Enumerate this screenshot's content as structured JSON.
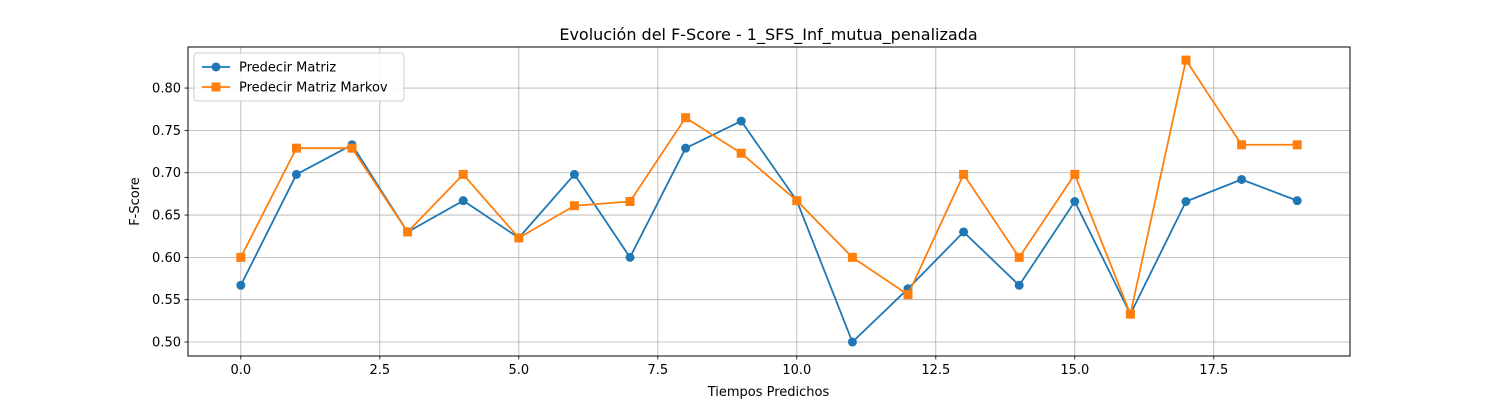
{
  "chart_data": {
    "type": "line",
    "title": "Evolución del F-Score - 1_SFS_Inf_mutua_penalizada",
    "xlabel": "Tiempos Predichos",
    "ylabel": "F-Score",
    "xlim": [
      -0.95,
      19.95
    ],
    "ylim": [
      0.4835,
      0.8485
    ],
    "xticks": [
      0.0,
      2.5,
      5.0,
      7.5,
      10.0,
      12.5,
      15.0,
      17.5
    ],
    "xtick_labels": [
      "0.0",
      "2.5",
      "5.0",
      "7.5",
      "10.0",
      "12.5",
      "15.0",
      "17.5"
    ],
    "yticks": [
      0.5,
      0.55,
      0.6,
      0.65,
      0.7,
      0.75,
      0.8
    ],
    "ytick_labels": [
      "0.50",
      "0.55",
      "0.60",
      "0.65",
      "0.70",
      "0.75",
      "0.80"
    ],
    "grid": true,
    "legend_position": "top-left",
    "x": [
      0,
      1,
      2,
      3,
      4,
      5,
      6,
      7,
      8,
      9,
      10,
      11,
      12,
      13,
      14,
      15,
      16,
      17,
      18,
      19
    ],
    "series": [
      {
        "name": "Predecir Matriz",
        "color": "#1f77b4",
        "marker": "circle",
        "values": [
          0.567,
          0.698,
          0.733,
          0.63,
          0.667,
          0.623,
          0.698,
          0.6,
          0.729,
          0.761,
          0.667,
          0.5,
          0.563,
          0.63,
          0.567,
          0.666,
          0.533,
          0.666,
          0.692,
          0.667
        ]
      },
      {
        "name": "Predecir Matriz Markov",
        "color": "#ff7f0e",
        "marker": "square",
        "values": [
          0.6,
          0.729,
          0.729,
          0.63,
          0.698,
          0.623,
          0.661,
          0.666,
          0.765,
          0.723,
          0.667,
          0.6,
          0.556,
          0.698,
          0.6,
          0.698,
          0.533,
          0.833,
          0.733,
          0.733
        ]
      }
    ]
  }
}
